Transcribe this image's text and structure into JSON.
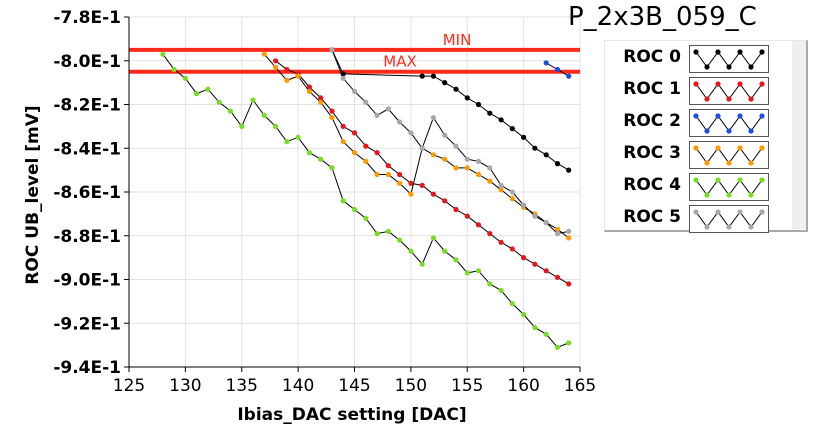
{
  "chart_data": {
    "type": "line",
    "title": "P_2x3B_059_C",
    "xlabel": "Ibias_DAC setting [DAC]",
    "ylabel": "ROC UB_level [mV]",
    "xlim": [
      125,
      165
    ],
    "ylim": [
      -0.94,
      -0.78
    ],
    "x_ticks": [
      125,
      130,
      135,
      140,
      145,
      150,
      155,
      160,
      165
    ],
    "x_tick_labels": [
      "125",
      "130",
      "135",
      "140",
      "145",
      "150",
      "155",
      "160",
      "165"
    ],
    "y_ticks": [
      -0.78,
      -0.8,
      -0.82,
      -0.84,
      -0.86,
      -0.88,
      -0.9,
      -0.92,
      -0.94
    ],
    "y_tick_labels": [
      "-7.8E-1",
      "-8.0E-1",
      "-8.2E-1",
      "-8.4E-1",
      "-8.6E-1",
      "-8.8E-1",
      "-9.0E-1",
      "-9.2E-1",
      "-9.4E-1"
    ],
    "grid": true,
    "legend_position": "right",
    "threshold_lines": [
      {
        "label": "MIN",
        "y": -0.795,
        "color": "#ff2a1a"
      },
      {
        "label": "MAX",
        "y": -0.805,
        "color": "#ff2a1a"
      }
    ],
    "series": [
      {
        "name": "ROC 0",
        "color": "#000000",
        "x": [
          143,
          144,
          151,
          152,
          153,
          154,
          155,
          156,
          157,
          158,
          159,
          160,
          161,
          162,
          163,
          164
        ],
        "y": [
          -0.795,
          -0.806,
          -0.807,
          -0.807,
          -0.81,
          -0.813,
          -0.817,
          -0.82,
          -0.824,
          -0.827,
          -0.831,
          -0.835,
          -0.84,
          -0.843,
          -0.847,
          -0.85
        ]
      },
      {
        "name": "ROC 1",
        "color": "#e8161c",
        "x": [
          138,
          139,
          140,
          141,
          142,
          143,
          144,
          145,
          146,
          147,
          148,
          149,
          150,
          151,
          152,
          153,
          154,
          155,
          156,
          157,
          158,
          159,
          160,
          161,
          162,
          163,
          164
        ],
        "y": [
          -0.8,
          -0.804,
          -0.806,
          -0.812,
          -0.817,
          -0.823,
          -0.83,
          -0.833,
          -0.839,
          -0.842,
          -0.848,
          -0.852,
          -0.856,
          -0.857,
          -0.861,
          -0.864,
          -0.868,
          -0.871,
          -0.875,
          -0.879,
          -0.883,
          -0.886,
          -0.89,
          -0.893,
          -0.896,
          -0.899,
          -0.902
        ]
      },
      {
        "name": "ROC 2",
        "color": "#1a4fe0",
        "x": [
          162,
          163,
          164
        ],
        "y": [
          -0.801,
          -0.804,
          -0.807
        ]
      },
      {
        "name": "ROC 3",
        "color": "#ff9900",
        "x": [
          137,
          138,
          139,
          140,
          141,
          142,
          143,
          144,
          145,
          146,
          147,
          148,
          149,
          150,
          151,
          152,
          153,
          154,
          155,
          156,
          157,
          158,
          159,
          160,
          161,
          162,
          163,
          164
        ],
        "y": [
          -0.797,
          -0.803,
          -0.809,
          -0.807,
          -0.814,
          -0.819,
          -0.826,
          -0.837,
          -0.842,
          -0.846,
          -0.852,
          -0.852,
          -0.856,
          -0.861,
          -0.84,
          -0.843,
          -0.845,
          -0.849,
          -0.849,
          -0.852,
          -0.855,
          -0.859,
          -0.863,
          -0.867,
          -0.87,
          -0.874,
          -0.877,
          -0.881
        ]
      },
      {
        "name": "ROC 4",
        "color": "#77dd22",
        "x": [
          128,
          129,
          130,
          131,
          132,
          133,
          134,
          135,
          136,
          137,
          138,
          139,
          140,
          141,
          142,
          143,
          144,
          145,
          146,
          147,
          148,
          149,
          150,
          151,
          152,
          153,
          154,
          155,
          156,
          157,
          158,
          159,
          160,
          161,
          162,
          163,
          164
        ],
        "y": [
          -0.797,
          -0.804,
          -0.808,
          -0.815,
          -0.813,
          -0.819,
          -0.823,
          -0.83,
          -0.818,
          -0.825,
          -0.83,
          -0.837,
          -0.835,
          -0.842,
          -0.845,
          -0.849,
          -0.864,
          -0.868,
          -0.872,
          -0.879,
          -0.878,
          -0.882,
          -0.887,
          -0.893,
          -0.881,
          -0.887,
          -0.891,
          -0.897,
          -0.896,
          -0.902,
          -0.905,
          -0.911,
          -0.916,
          -0.922,
          -0.925,
          -0.931,
          -0.929
        ]
      },
      {
        "name": "ROC 5",
        "color": "#a8a8a8",
        "x": [
          143,
          144,
          145,
          146,
          147,
          148,
          149,
          150,
          151,
          152,
          153,
          154,
          155,
          156,
          157,
          158,
          159,
          160,
          161,
          162,
          163,
          164
        ],
        "y": [
          -0.795,
          -0.808,
          -0.814,
          -0.819,
          -0.825,
          -0.822,
          -0.828,
          -0.833,
          -0.84,
          -0.826,
          -0.834,
          -0.839,
          -0.845,
          -0.846,
          -0.849,
          -0.857,
          -0.86,
          -0.866,
          -0.871,
          -0.874,
          -0.879,
          -0.878
        ]
      }
    ]
  }
}
